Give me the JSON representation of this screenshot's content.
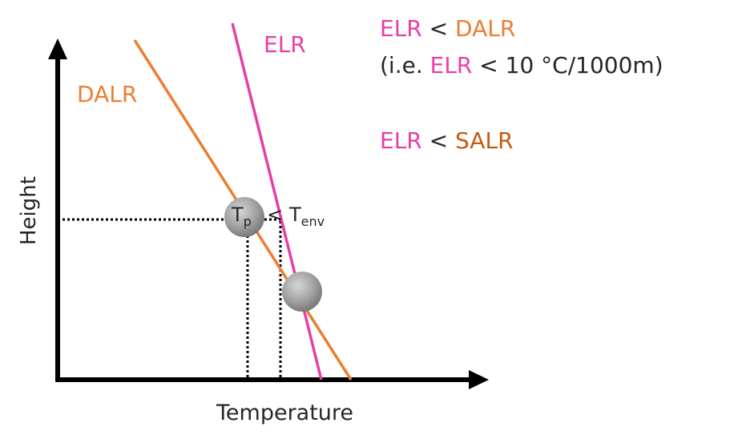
{
  "diagram": {
    "x_axis_label": "Temperature",
    "y_axis_label": "Height",
    "dalr_label": "DALR",
    "elr_label": "ELR",
    "parcel_temp": {
      "main": "T",
      "sub": "p"
    },
    "comparison_sign": "<",
    "env_temp": {
      "main": "T",
      "sub": "env"
    }
  },
  "conditions": {
    "line1": {
      "a": "ELR",
      "op": " < ",
      "b": "DALR"
    },
    "line2": {
      "prefix": "(i.e. ",
      "a": "ELR",
      "rest": " < 10 °C/1000m)"
    },
    "line3": {
      "a": "ELR",
      "op": " < ",
      "b": "SALR"
    }
  },
  "colors": {
    "elr": "#e83ea6",
    "dalr": "#ed7d31",
    "salr": "#c55a11",
    "axis": "#000000",
    "text": "#262626",
    "parcel": "#9e9e9e"
  }
}
